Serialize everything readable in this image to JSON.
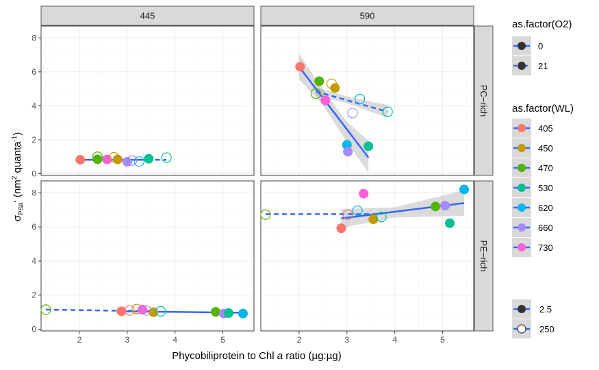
{
  "chart_data": {
    "type": "scatter",
    "xlabel_parts": [
      "Phycobiliprotein to Chl ",
      "a",
      " ratio (µg:µg)"
    ],
    "ylabel_parts": {
      "sigma": "σ",
      "sub": "PSII",
      "prime": "' (nm",
      "sup1": "2",
      "mid": " quanta",
      "sup2": "-1",
      "end": ")"
    },
    "x_ticks": [
      2,
      3,
      4,
      5
    ],
    "xlim": [
      1.2,
      5.65
    ],
    "panel_rows": [
      {
        "label": "PC−rich",
        "ylim": [
          -0.1,
          8.7
        ],
        "y_ticks": [
          0,
          2,
          4,
          6,
          8
        ]
      },
      {
        "label": "PE−rich",
        "ylim": [
          -0.1,
          8.7
        ],
        "y_ticks": [
          0,
          2,
          4,
          6,
          8
        ]
      }
    ],
    "panel_cols": [
      {
        "label": "445"
      },
      {
        "label": "590"
      }
    ],
    "wl_levels": [
      {
        "label": "405",
        "color": "#F8766D"
      },
      {
        "label": "450",
        "color": "#C49A00"
      },
      {
        "label": "470",
        "color": "#53B400"
      },
      {
        "label": "530",
        "color": "#00C094"
      },
      {
        "label": "620",
        "color": "#00B6EB"
      },
      {
        "label": "660",
        "color": "#A58AFF"
      },
      {
        "label": "730",
        "color": "#FB61D7"
      }
    ],
    "o2_levels": [
      {
        "label": "0",
        "dash": "solid"
      },
      {
        "label": "21",
        "dash": "dashed"
      }
    ],
    "size_levels": [
      {
        "label": "2.5",
        "fill": "solid"
      },
      {
        "label": "250",
        "fill": "open"
      }
    ],
    "panels": [
      {
        "row": 0,
        "col": 0,
        "points": [
          {
            "x": 2.02,
            "y": 0.82,
            "wl": "405",
            "open": false
          },
          {
            "x": 2.38,
            "y": 0.85,
            "wl": "470",
            "open": false
          },
          {
            "x": 2.38,
            "y": 1.0,
            "wl": "470",
            "open": true
          },
          {
            "x": 2.58,
            "y": 0.84,
            "wl": "730",
            "open": false
          },
          {
            "x": 2.72,
            "y": 0.97,
            "wl": "450",
            "open": true
          },
          {
            "x": 2.8,
            "y": 0.84,
            "wl": "450",
            "open": false
          },
          {
            "x": 3.0,
            "y": 0.7,
            "wl": "660",
            "open": false
          },
          {
            "x": 3.1,
            "y": 0.78,
            "wl": "660",
            "open": true
          },
          {
            "x": 3.25,
            "y": 0.72,
            "wl": "620",
            "open": true
          },
          {
            "x": 3.45,
            "y": 0.88,
            "wl": "530",
            "open": false
          },
          {
            "x": 3.82,
            "y": 0.95,
            "wl": "530",
            "open": true
          }
        ],
        "lines": [
          {
            "x1": 2.0,
            "y1": 0.82,
            "x2": 3.45,
            "y2": 0.82,
            "dash": "solid"
          },
          {
            "x1": 2.38,
            "y1": 0.82,
            "x2": 3.82,
            "y2": 0.82,
            "dash": "dashed"
          }
        ],
        "ribbons": []
      },
      {
        "row": 0,
        "col": 1,
        "points": [
          {
            "x": 2.02,
            "y": 6.3,
            "wl": "405",
            "open": false
          },
          {
            "x": 2.35,
            "y": 4.72,
            "wl": "470",
            "open": true
          },
          {
            "x": 2.42,
            "y": 5.45,
            "wl": "470",
            "open": false
          },
          {
            "x": 2.55,
            "y": 4.32,
            "wl": "730",
            "open": false
          },
          {
            "x": 2.68,
            "y": 5.3,
            "wl": "450",
            "open": true
          },
          {
            "x": 2.75,
            "y": 5.05,
            "wl": "450",
            "open": false
          },
          {
            "x": 3.0,
            "y": 1.7,
            "wl": "620",
            "open": false
          },
          {
            "x": 3.02,
            "y": 1.3,
            "wl": "660",
            "open": false
          },
          {
            "x": 3.12,
            "y": 3.58,
            "wl": "660",
            "open": true
          },
          {
            "x": 3.27,
            "y": 4.4,
            "wl": "620",
            "open": true
          },
          {
            "x": 3.45,
            "y": 1.62,
            "wl": "530",
            "open": false
          },
          {
            "x": 3.85,
            "y": 3.65,
            "wl": "530",
            "open": true
          }
        ],
        "lines": [
          {
            "x1": 2.0,
            "y1": 6.3,
            "x2": 3.45,
            "y2": 0.95,
            "dash": "solid"
          },
          {
            "x1": 2.35,
            "y1": 4.85,
            "x2": 3.85,
            "y2": 3.65,
            "dash": "dashed"
          }
        ],
        "ribbons": [
          {
            "upper": [
              [
                2.0,
                7.05
              ],
              [
                2.5,
                4.95
              ],
              [
                3.0,
                3.05
              ],
              [
                3.45,
                1.95
              ]
            ],
            "lower": [
              [
                2.0,
                5.55
              ],
              [
                2.5,
                4.05
              ],
              [
                3.0,
                1.85
              ],
              [
                3.45,
                0.05
              ]
            ]
          },
          {
            "upper": [
              [
                2.35,
                5.1
              ],
              [
                3.0,
                4.55
              ],
              [
                3.85,
                4.05
              ]
            ],
            "lower": [
              [
                2.35,
                4.6
              ],
              [
                3.0,
                4.15
              ],
              [
                3.85,
                3.3
              ]
            ]
          }
        ]
      },
      {
        "row": 1,
        "col": 0,
        "points": [
          {
            "x": 1.3,
            "y": 1.15,
            "wl": "470",
            "open": true
          },
          {
            "x": 2.88,
            "y": 1.05,
            "wl": "405",
            "open": false
          },
          {
            "x": 3.05,
            "y": 1.1,
            "wl": "405",
            "open": true
          },
          {
            "x": 3.2,
            "y": 1.18,
            "wl": "450",
            "open": true
          },
          {
            "x": 3.32,
            "y": 1.15,
            "wl": "730",
            "open": false
          },
          {
            "x": 3.4,
            "y": 1.1,
            "wl": "660",
            "open": true
          },
          {
            "x": 3.55,
            "y": 1.0,
            "wl": "450",
            "open": false
          },
          {
            "x": 3.7,
            "y": 1.05,
            "wl": "620",
            "open": true
          },
          {
            "x": 4.85,
            "y": 1.02,
            "wl": "470",
            "open": false
          },
          {
            "x": 5.02,
            "y": 0.92,
            "wl": "660",
            "open": false
          },
          {
            "x": 5.12,
            "y": 0.95,
            "wl": "530",
            "open": false
          },
          {
            "x": 5.42,
            "y": 0.92,
            "wl": "620",
            "open": false
          }
        ],
        "lines": [
          {
            "x1": 2.88,
            "y1": 1.05,
            "x2": 5.42,
            "y2": 0.97,
            "dash": "solid"
          },
          {
            "x1": 1.3,
            "y1": 1.15,
            "x2": 3.7,
            "y2": 1.05,
            "dash": "dashed"
          }
        ],
        "ribbons": []
      },
      {
        "row": 1,
        "col": 1,
        "points": [
          {
            "x": 1.3,
            "y": 6.72,
            "wl": "470",
            "open": true
          },
          {
            "x": 2.88,
            "y": 5.92,
            "wl": "405",
            "open": false
          },
          {
            "x": 3.02,
            "y": 6.72,
            "wl": "405",
            "open": true
          },
          {
            "x": 3.22,
            "y": 6.95,
            "wl": "620",
            "open": true
          },
          {
            "x": 3.35,
            "y": 7.95,
            "wl": "730",
            "open": false
          },
          {
            "x": 3.55,
            "y": 6.45,
            "wl": "450",
            "open": false
          },
          {
            "x": 3.72,
            "y": 6.58,
            "wl": "530",
            "open": true
          },
          {
            "x": 4.85,
            "y": 7.2,
            "wl": "470",
            "open": false
          },
          {
            "x": 5.05,
            "y": 7.25,
            "wl": "660",
            "open": false
          },
          {
            "x": 5.15,
            "y": 6.22,
            "wl": "530",
            "open": false
          },
          {
            "x": 5.45,
            "y": 8.2,
            "wl": "620",
            "open": false
          }
        ],
        "lines": [
          {
            "x1": 2.88,
            "y1": 6.5,
            "x2": 5.45,
            "y2": 7.4,
            "dash": "solid"
          },
          {
            "x1": 1.3,
            "y1": 6.75,
            "x2": 3.72,
            "y2": 6.75,
            "dash": "dashed"
          }
        ],
        "ribbons": [
          {
            "upper": [
              [
                2.88,
                7.05
              ],
              [
                4.0,
                7.15
              ],
              [
                5.45,
                8.15
              ]
            ],
            "lower": [
              [
                2.88,
                5.95
              ],
              [
                4.0,
                6.55
              ],
              [
                5.45,
                6.65
              ]
            ]
          }
        ]
      }
    ]
  },
  "legend": {
    "o2_title": "as.factor(O2)",
    "wl_title": "as.factor(WL)"
  }
}
